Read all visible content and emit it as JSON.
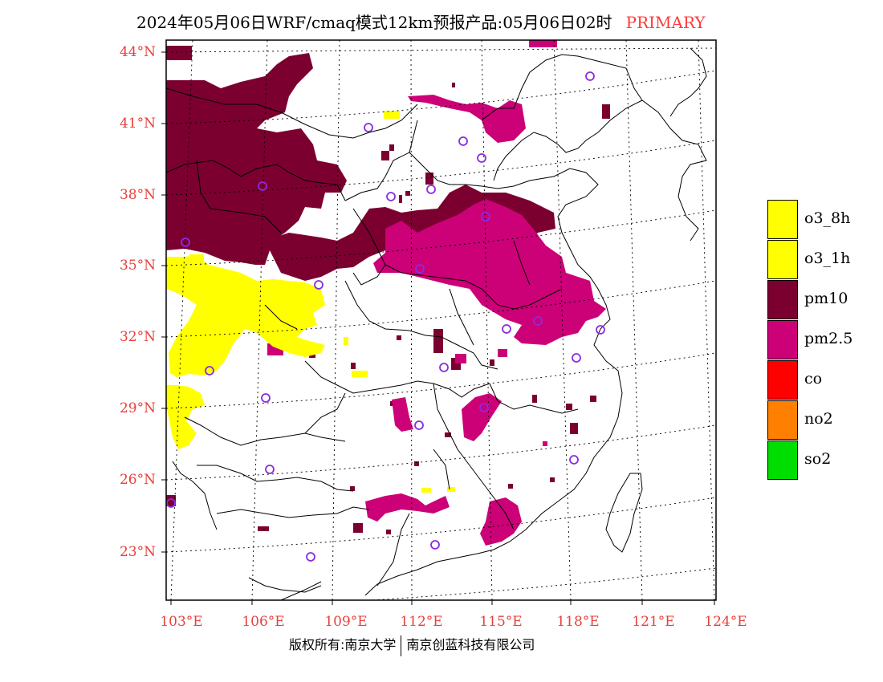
{
  "title": {
    "main": "2024年05月06日WRF/cmaq模式12km预报产品:05月06日02时",
    "tag": "PRIMARY"
  },
  "map": {
    "lat_labels": [
      "44°N",
      "41°N",
      "38°N",
      "35°N",
      "32°N",
      "29°N",
      "26°N",
      "23°N"
    ],
    "lon_labels": [
      "103°E",
      "106°E",
      "109°E",
      "112°E",
      "115°E",
      "118°E",
      "121°E",
      "124°E"
    ],
    "colors": {
      "frame": "#000000",
      "boundary": "#000000",
      "grid": "#000000",
      "station_marker": "#8a2be2",
      "axis_labels": "#e8413c"
    }
  },
  "legend": {
    "items": [
      {
        "label": "o3_8h",
        "color": "#ffff00"
      },
      {
        "label": "o3_1h",
        "color": "#ffff00"
      },
      {
        "label": "pm10",
        "color": "#7b0030"
      },
      {
        "label": "pm2.5",
        "color": "#cc0077"
      },
      {
        "label": "co",
        "color": "#ff0000"
      },
      {
        "label": "no2",
        "color": "#ff8000"
      },
      {
        "label": "so2",
        "color": "#00dd00"
      }
    ]
  },
  "footer": {
    "left": "版权所有:南京大学",
    "right": "南京创蓝科技有限公司"
  }
}
